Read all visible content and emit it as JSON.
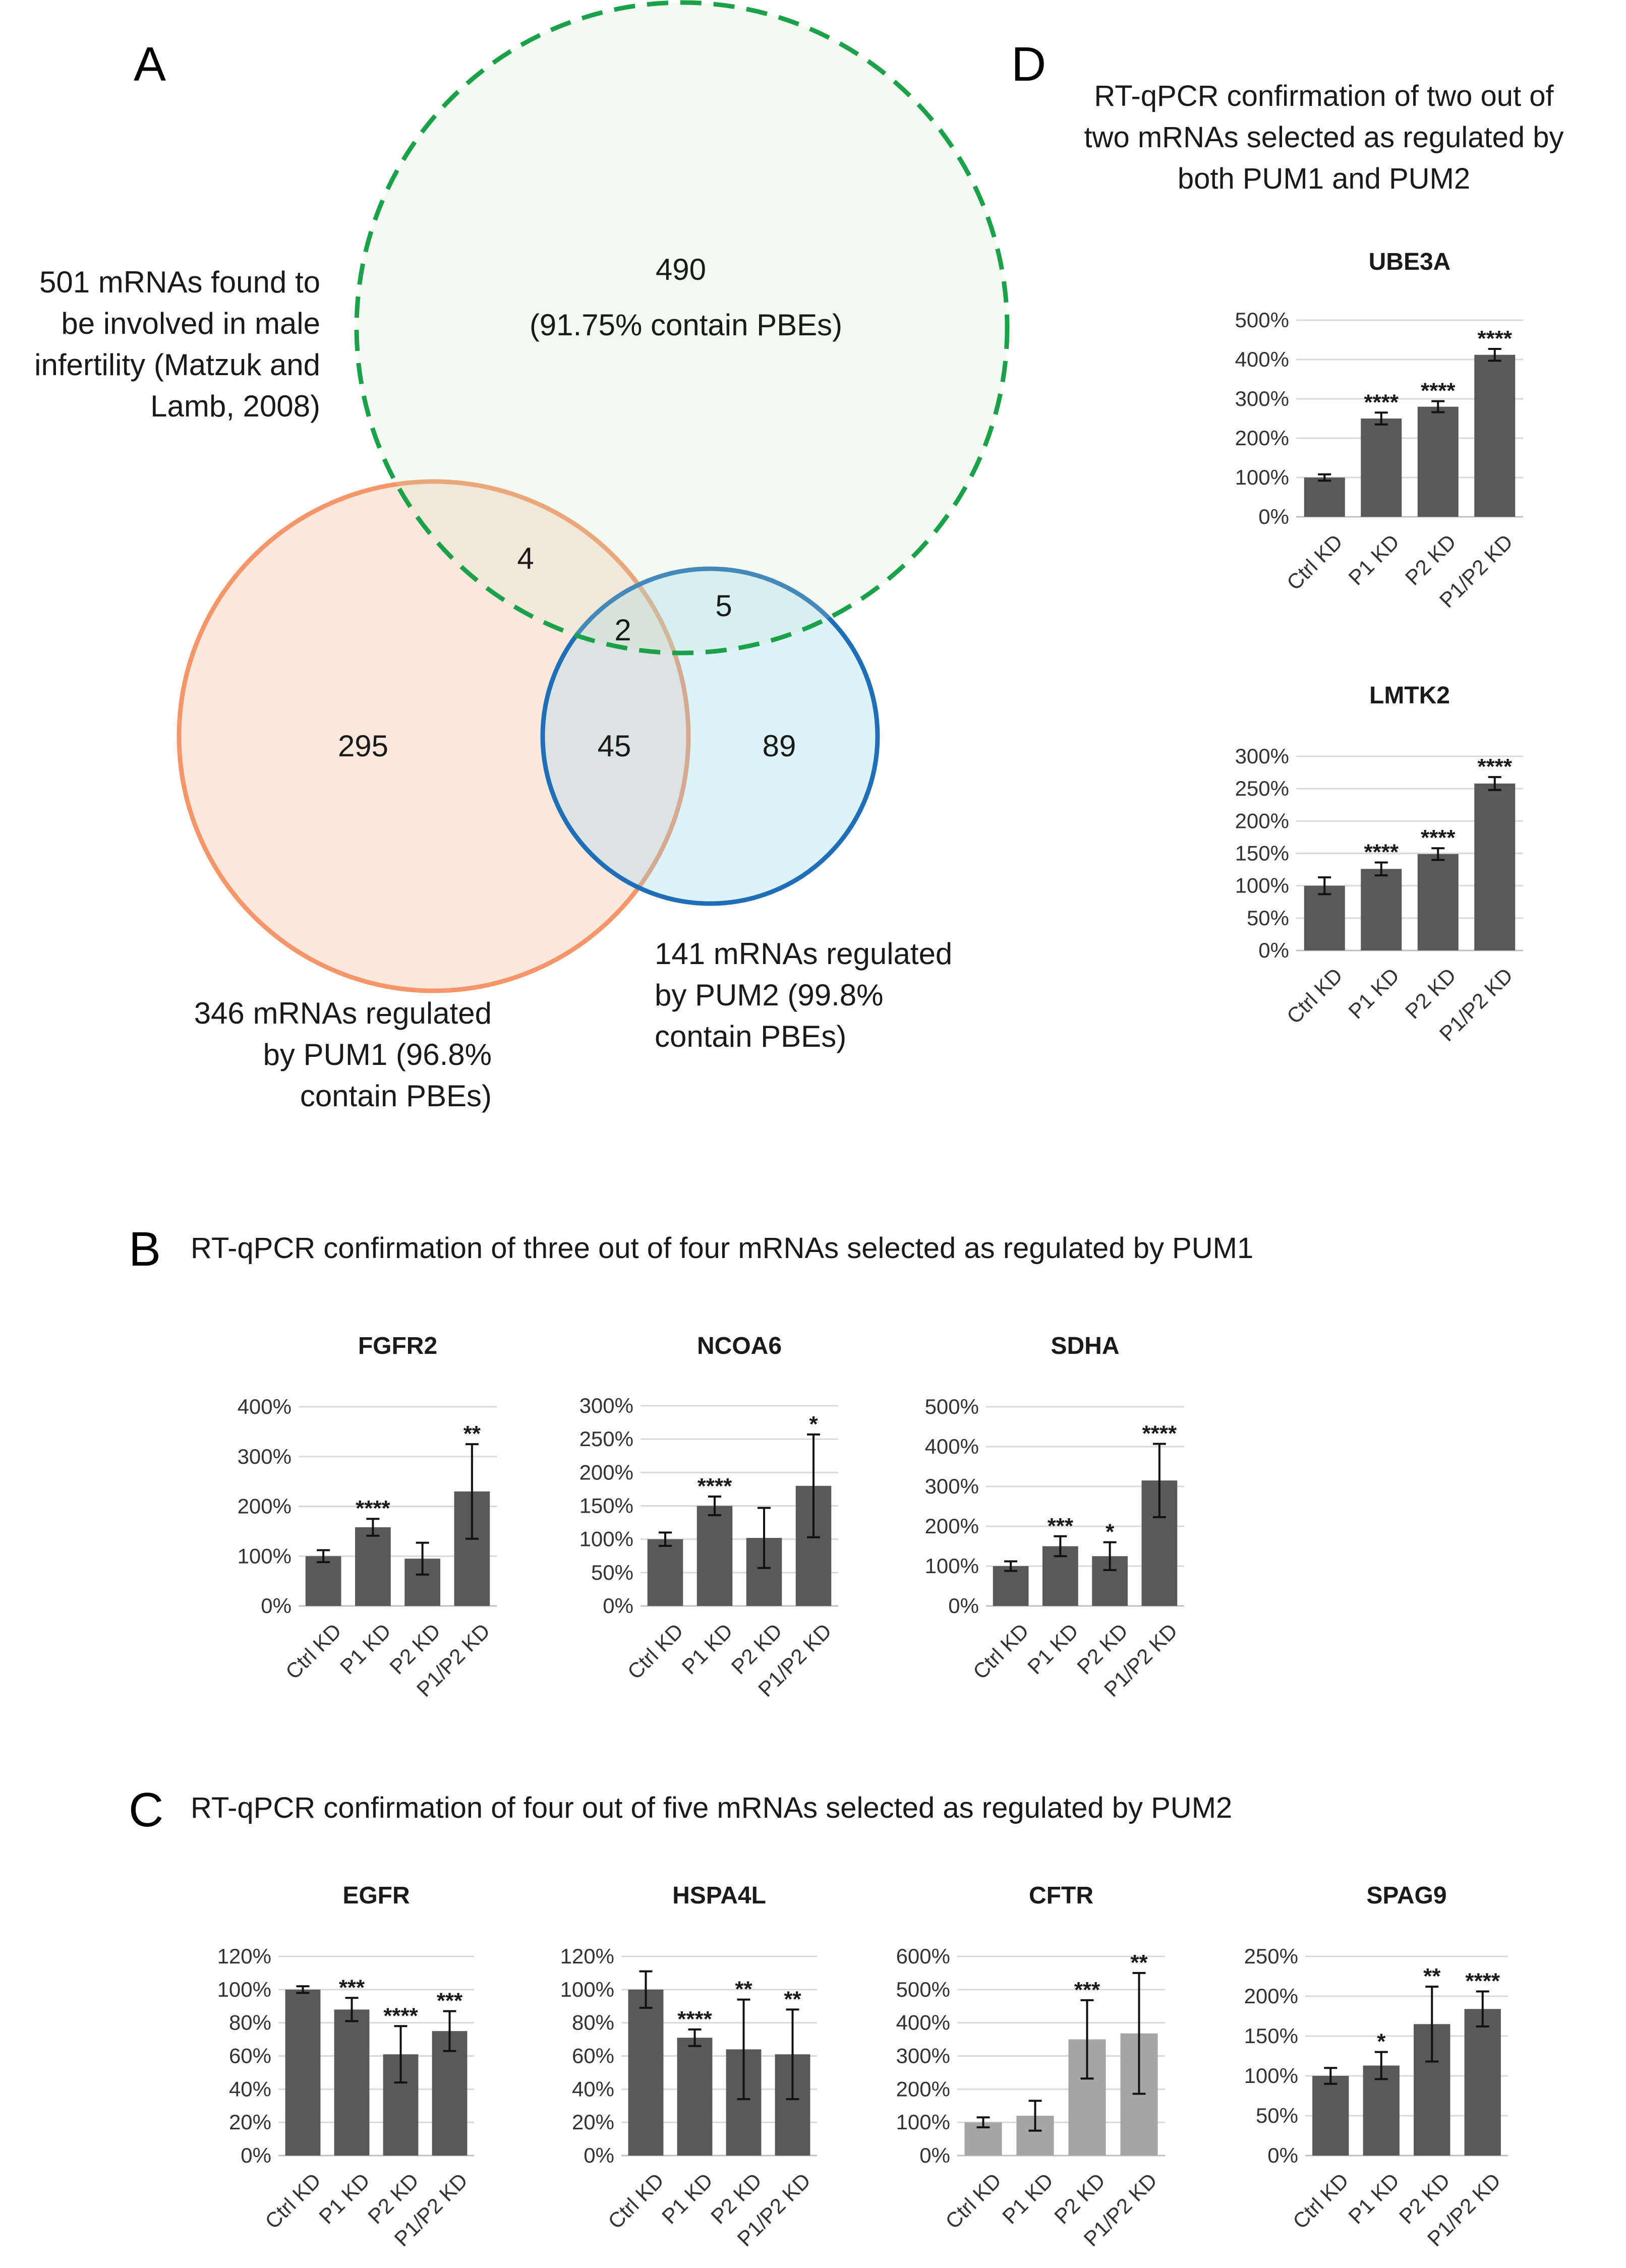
{
  "panels": {
    "A": {
      "label": "A",
      "fertility_label": [
        "501 mRNAs found to",
        "be involved in male",
        "infertility (Matzuk and",
        "Lamb, 2008)"
      ],
      "pum1_label": [
        "346 mRNAs regulated",
        "by PUM1 (96.8%",
        "contain PBEs)"
      ],
      "pum2_label": [
        "141 mRNAs regulated",
        "by PUM2 (99.8%",
        "contain PBEs)"
      ],
      "regions": {
        "fertility_only": "490",
        "fertility_only_note": "(91.75% contain PBEs)",
        "fertility_pum1": "4",
        "fertility_pum2": "5",
        "all_three": "2",
        "pum1_only": "295",
        "pum1_pum2": "45",
        "pum2_only": "89"
      },
      "colors": {
        "fertility": "#1aa14a",
        "pum1": "#f4956a",
        "pum2": "#1f6fb8"
      }
    },
    "B": {
      "label": "B",
      "title": "RT-qPCR confirmation of three out of four mRNAs selected as regulated by PUM1"
    },
    "C": {
      "label": "C",
      "title": "RT-qPCR confirmation of four out of five mRNAs selected as regulated by PUM2"
    },
    "D": {
      "label": "D",
      "title": [
        "RT-qPCR confirmation of two out of",
        "two mRNAs selected as regulated by",
        "both PUM1 and PUM2"
      ]
    }
  },
  "bar_colors": {
    "dark": "#595959",
    "light": "#a6a6a6"
  },
  "chart_data": [
    {
      "id": "ube3a",
      "panel": "D",
      "type": "bar",
      "title": "UBE3A",
      "color": "dark",
      "categories": [
        "Ctrl KD",
        "P1 KD",
        "P2 KD",
        "P1/P2 KD"
      ],
      "values": [
        100,
        250,
        280,
        412
      ],
      "errors": [
        8,
        15,
        14,
        15
      ],
      "significance": [
        "",
        "****",
        "****",
        "****"
      ],
      "ylim": [
        0,
        500
      ],
      "yticks": [
        0,
        100,
        200,
        300,
        400,
        500
      ],
      "ytick_labels": [
        "0%",
        "100%",
        "200%",
        "300%",
        "400%",
        "500%"
      ]
    },
    {
      "id": "lmtk2",
      "panel": "D",
      "type": "bar",
      "title": "LMTK2",
      "color": "dark",
      "categories": [
        "Ctrl KD",
        "P1 KD",
        "P2 KD",
        "P1/P2 KD"
      ],
      "values": [
        100,
        126,
        149,
        258
      ],
      "errors": [
        13,
        10,
        9,
        10
      ],
      "significance": [
        "",
        "****",
        "****",
        "****"
      ],
      "ylim": [
        0,
        300
      ],
      "yticks": [
        0,
        50,
        100,
        150,
        200,
        250,
        300
      ],
      "ytick_labels": [
        "0%",
        "50%",
        "100%",
        "150%",
        "200%",
        "250%",
        "300%"
      ]
    },
    {
      "id": "fgfr2",
      "panel": "B",
      "type": "bar",
      "title": "FGFR2",
      "color": "dark",
      "categories": [
        "Ctrl KD",
        "P1 KD",
        "P2 KD",
        "P1/P2 KD"
      ],
      "values": [
        100,
        158,
        95,
        230
      ],
      "errors": [
        12,
        17,
        32,
        95
      ],
      "significance": [
        "",
        "****",
        "",
        "**"
      ],
      "ylim": [
        0,
        400
      ],
      "yticks": [
        0,
        100,
        200,
        300,
        400
      ],
      "ytick_labels": [
        "0%",
        "100%",
        "200%",
        "300%",
        "400%"
      ]
    },
    {
      "id": "ncoa6",
      "panel": "B",
      "type": "bar",
      "title": "NCOA6",
      "color": "dark",
      "categories": [
        "Ctrl KD",
        "P1 KD",
        "P2 KD",
        "P1/P2 KD"
      ],
      "values": [
        100,
        150,
        102,
        180
      ],
      "errors": [
        10,
        14,
        45,
        77
      ],
      "significance": [
        "",
        "****",
        "",
        "*"
      ],
      "ylim": [
        0,
        300
      ],
      "yticks": [
        0,
        50,
        100,
        150,
        200,
        250,
        300
      ],
      "ytick_labels": [
        "0%",
        "50%",
        "100%",
        "150%",
        "200%",
        "250%",
        "300%"
      ]
    },
    {
      "id": "sdha",
      "panel": "B",
      "type": "bar",
      "title": "SDHA",
      "color": "dark",
      "categories": [
        "Ctrl KD",
        "P1 KD",
        "P2 KD",
        "P1/P2 KD"
      ],
      "values": [
        100,
        150,
        125,
        315
      ],
      "errors": [
        12,
        25,
        35,
        92
      ],
      "significance": [
        "",
        "***",
        "*",
        "****"
      ],
      "ylim": [
        0,
        500
      ],
      "yticks": [
        0,
        100,
        200,
        300,
        400,
        500
      ],
      "ytick_labels": [
        "0%",
        "100%",
        "200%",
        "300%",
        "400%",
        "500%"
      ]
    },
    {
      "id": "egfr",
      "panel": "C",
      "type": "bar",
      "title": "EGFR",
      "color": "dark",
      "categories": [
        "Ctrl KD",
        "P1 KD",
        "P2 KD",
        "P1/P2 KD"
      ],
      "values": [
        100,
        88,
        61,
        75
      ],
      "errors": [
        2,
        7,
        17,
        12
      ],
      "significance": [
        "",
        "***",
        "****",
        "***"
      ],
      "ylim": [
        0,
        120
      ],
      "yticks": [
        0,
        20,
        40,
        60,
        80,
        100,
        120
      ],
      "ytick_labels": [
        "0%",
        "20%",
        "40%",
        "60%",
        "80%",
        "100%",
        "120%"
      ]
    },
    {
      "id": "hspa4l",
      "panel": "C",
      "type": "bar",
      "title": "HSPA4L",
      "color": "dark",
      "categories": [
        "Ctrl KD",
        "P1 KD",
        "P2 KD",
        "P1/P2 KD"
      ],
      "values": [
        100,
        71,
        64,
        61
      ],
      "errors": [
        11,
        5,
        30,
        27
      ],
      "significance": [
        "",
        "****",
        "**",
        "**"
      ],
      "ylim": [
        0,
        120
      ],
      "yticks": [
        0,
        20,
        40,
        60,
        80,
        100,
        120
      ],
      "ytick_labels": [
        "0%",
        "20%",
        "40%",
        "60%",
        "80%",
        "100%",
        "120%"
      ]
    },
    {
      "id": "cftr",
      "panel": "C",
      "type": "bar",
      "title": "CFTR",
      "color": "light",
      "categories": [
        "Ctrl KD",
        "P1 KD",
        "P2 KD",
        "P1/P2 KD"
      ],
      "values": [
        100,
        120,
        350,
        368
      ],
      "errors": [
        15,
        45,
        118,
        182
      ],
      "significance": [
        "",
        "",
        "***",
        "**"
      ],
      "ylim": [
        0,
        600
      ],
      "yticks": [
        0,
        100,
        200,
        300,
        400,
        500,
        600
      ],
      "ytick_labels": [
        "0%",
        "100%",
        "200%",
        "300%",
        "400%",
        "500%",
        "600%"
      ]
    },
    {
      "id": "spag9",
      "panel": "C",
      "type": "bar",
      "title": "SPAG9",
      "color": "dark",
      "categories": [
        "Ctrl KD",
        "P1 KD",
        "P2 KD",
        "P1/P2 KD"
      ],
      "values": [
        100,
        113,
        165,
        184
      ],
      "errors": [
        10,
        17,
        47,
        22
      ],
      "significance": [
        "",
        "*",
        "**",
        "****"
      ],
      "ylim": [
        0,
        250
      ],
      "yticks": [
        0,
        50,
        100,
        150,
        200,
        250
      ],
      "ytick_labels": [
        "0%",
        "50%",
        "100%",
        "150%",
        "200%",
        "250%"
      ]
    }
  ]
}
